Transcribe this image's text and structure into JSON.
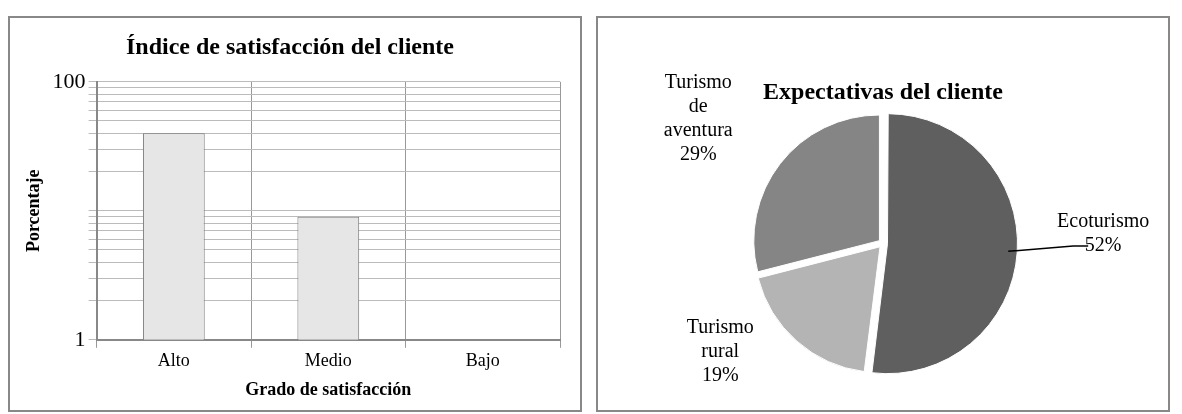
{
  "chart_data": [
    {
      "type": "bar",
      "title": "Índice de satisfacción del cliente",
      "xlabel": "Grado de satisfacción",
      "ylabel": "Porcentaje",
      "categories": [
        "Alto",
        "Medio",
        "Bajo"
      ],
      "values": [
        40,
        9,
        null
      ],
      "color": "#e6e6e6",
      "log": true,
      "ylim": [
        1,
        100
      ],
      "yticks": [
        1,
        {
          "value": 2,
          "label": null
        },
        {
          "value": 3,
          "label": null
        },
        {
          "value": 4,
          "label": null
        },
        {
          "value": 5,
          "label": null
        },
        {
          "value": 6,
          "label": null
        },
        {
          "value": 7,
          "label": null
        },
        {
          "value": 8,
          "label": null
        },
        {
          "value": 9,
          "label": null
        },
        {
          "value": 10,
          "label": null
        },
        {
          "value": 20,
          "label": null
        },
        {
          "value": 30,
          "label": null
        },
        {
          "value": 40,
          "label": null
        },
        {
          "value": 50,
          "label": null
        },
        {
          "value": 60,
          "label": null
        },
        {
          "value": 70,
          "label": null
        },
        {
          "value": 80,
          "label": null
        },
        {
          "value": 90,
          "label": null
        },
        100
      ],
      "grid": true,
      "legend": false
    },
    {
      "type": "pie",
      "title": "Expectativas del cliente",
      "categories": [
        "Ecoturismo",
        "Turismo rural",
        "Turismo de aventura"
      ],
      "values": [
        52,
        19,
        29
      ],
      "colors": [
        "#5f5f5f",
        "#b4b4b4",
        "#858585"
      ],
      "value_labels": [
        "52%",
        "19%",
        "29%"
      ],
      "legend": false
    }
  ]
}
